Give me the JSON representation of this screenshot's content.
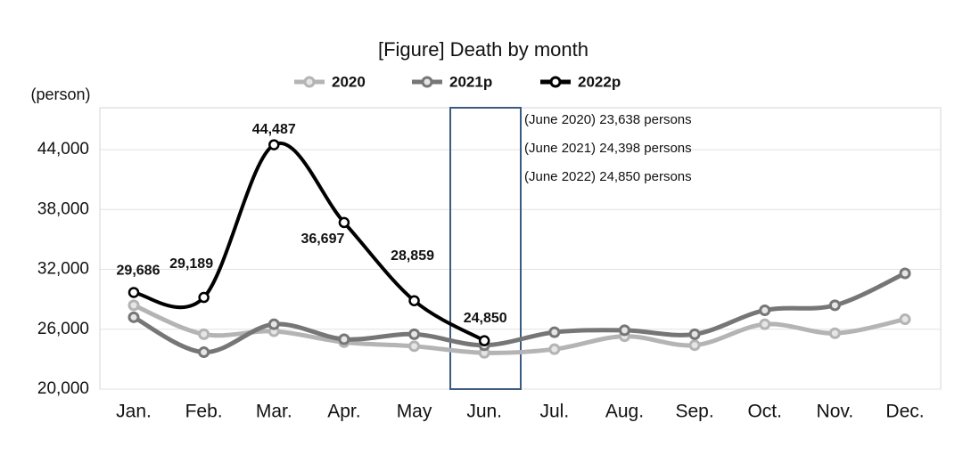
{
  "chart_data": {
    "type": "line",
    "title": "[Figure]  Death  by  month",
    "y_label": "(person)",
    "categories": [
      "Jan.",
      "Feb.",
      "Mar.",
      "Apr.",
      "May",
      "Jun.",
      "Jul.",
      "Aug.",
      "Sep.",
      "Oct.",
      "Nov.",
      "Dec."
    ],
    "series": [
      {
        "name": "2020",
        "color": "#b4b4b4",
        "values": [
          28400,
          25500,
          25800,
          24700,
          24300,
          23638,
          24000,
          25300,
          24400,
          26500,
          25600,
          27000
        ]
      },
      {
        "name": "2021p",
        "color": "#767676",
        "values": [
          27200,
          23700,
          26500,
          25000,
          25500,
          24398,
          25700,
          25900,
          25500,
          27900,
          28400,
          31600
        ]
      },
      {
        "name": "2022p",
        "color": "#000000",
        "values": [
          29686,
          29189,
          44487,
          36697,
          28859,
          24850,
          null,
          null,
          null,
          null,
          null,
          null
        ],
        "value_labels": [
          "29,686",
          "29,189",
          "44,487",
          "36,697",
          "28,859",
          "24,850",
          null,
          null,
          null,
          null,
          null,
          null
        ]
      }
    ],
    "ylim": [
      20000,
      48200
    ],
    "yticks": [
      {
        "value": 20000,
        "label": "20,000"
      },
      {
        "value": 26000,
        "label": "26,000"
      },
      {
        "value": 32000,
        "label": "32,000"
      },
      {
        "value": 38000,
        "label": "38,000"
      },
      {
        "value": 44000,
        "label": "44,000"
      }
    ],
    "grid": true,
    "legend": "top",
    "annotations": [
      "(June 2020) 23,638 persons",
      "(June 2021) 24,398 persons",
      "(June 2022) 24,850 persons"
    ]
  }
}
